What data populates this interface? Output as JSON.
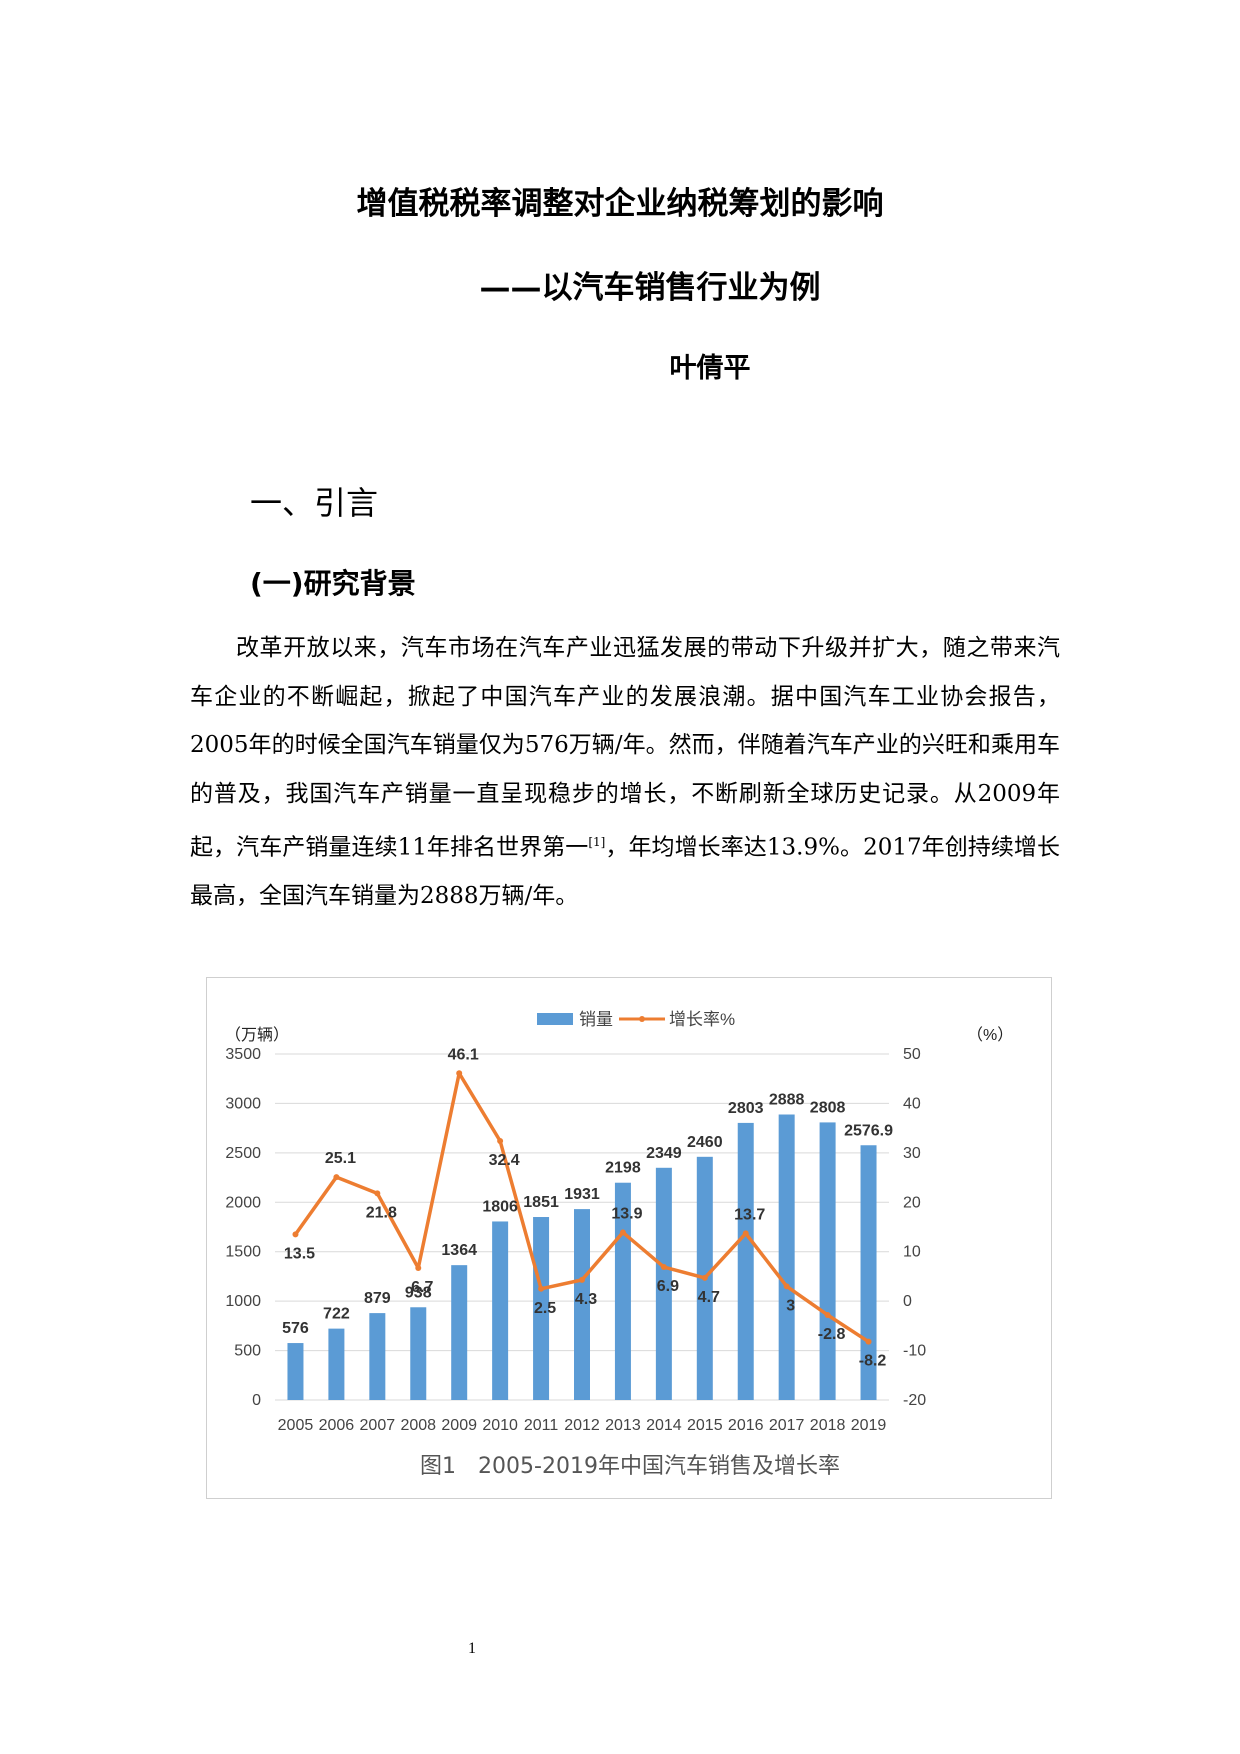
{
  "document": {
    "title": "增值税税率调整对企业纳税筹划的影响",
    "subtitle": "——以汽车销售行业为例",
    "author": "叶倩平",
    "section_heading": "一、引言",
    "subsection_heading": "(一)研究背景",
    "paragraph_main": "改革开放以来，汽车市场在汽车产业迅猛发展的带动下升级并扩大，随之带来汽车企业的不断崛起，掀起了中国汽车产业的发展浪潮。据中国汽车工业协会报告，2005年的时候全国汽车销量仅为576万辆/年。然而，伴随着汽车产业的兴旺和乘用车的普及，我国汽车产销量一直呈现稳步的增长，不断刷新全球历史记录。从2009年起，汽车产销量连续11年排名世界第一",
    "citation": "[1]",
    "paragraph_tail": "，年均增长率达13.9%。2017年创持续增长最高，全国汽车销量为2888万辆/年。",
    "figure_caption": "图1　2005-2019年中国汽车销售及增长率",
    "page_number": "1"
  },
  "chart_data": {
    "type": "bar",
    "categories": [
      "2005",
      "2006",
      "2007",
      "2008",
      "2009",
      "2010",
      "2011",
      "2012",
      "2013",
      "2014",
      "2015",
      "2016",
      "2017",
      "2018",
      "2019"
    ],
    "series": [
      {
        "name": "销量",
        "type": "bar",
        "axis": "left",
        "color": "#5b9bd5",
        "values": [
          576,
          722,
          879,
          938,
          1364,
          1806,
          1851,
          1931,
          2198,
          2349,
          2460,
          2803,
          2888,
          2808,
          2576.9
        ],
        "labels": [
          "576",
          "722",
          "879",
          "938",
          "1364",
          "1806",
          "1851",
          "1931",
          "2198",
          "2349",
          "2460",
          "2803",
          "2888",
          "2808",
          "2576.9"
        ]
      },
      {
        "name": "增长率%",
        "type": "line",
        "axis": "right",
        "color": "#ed7d31",
        "values": [
          13.5,
          25.1,
          21.8,
          6.7,
          46.1,
          32.4,
          2.5,
          4.3,
          13.9,
          6.9,
          4.7,
          13.7,
          3,
          -2.8,
          -8.2
        ],
        "labels": [
          "13.5",
          "25.1",
          "21.8",
          "6.7",
          "46.1",
          "32.4",
          "2.5",
          "4.3",
          "13.9",
          "6.9",
          "4.7",
          "13.7",
          "3",
          "-2.8",
          "-8.2"
        ]
      }
    ],
    "left_axis": {
      "unit_label": "（万辆）",
      "min": 0,
      "max": 3500,
      "ticks": [
        "0",
        "500",
        "1000",
        "1500",
        "2000",
        "2500",
        "3000",
        "3500"
      ]
    },
    "right_axis": {
      "unit_label": "（%）",
      "min": -20,
      "max": 50,
      "ticks": [
        "-20",
        "-10",
        "0",
        "10",
        "20",
        "30",
        "40",
        "50"
      ]
    },
    "grid": true,
    "legend_placement": "top-center"
  }
}
